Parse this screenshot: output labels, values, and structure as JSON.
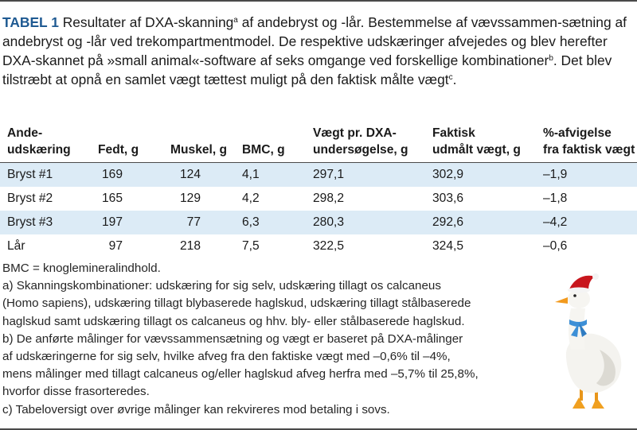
{
  "caption": {
    "label": "TABEL 1",
    "text_1": " Resultater af DXA-skanning",
    "sup_a": "a",
    "text_2": " af andebryst og -lår. Bestemmelse af vævssammen-sætning af andebryst og -lår ved trekompartmentmodel. De respektive udskæringer afvejedes og blev herefter DXA-skannet på »small animal«-software af seks omgange ved forskellige kombinationer",
    "sup_b": "b",
    "text_3": ". Det blev tilstræbt at opnå en samlet vægt tættest muligt på den faktisk målte vægt",
    "sup_c": "c",
    "text_4": "."
  },
  "table": {
    "headers": [
      [
        "Ande-",
        "udskæring"
      ],
      [
        "",
        "Fedt, g"
      ],
      [
        "",
        "Muskel, g"
      ],
      [
        "",
        "BMC, g"
      ],
      [
        "Vægt pr. DXA-",
        "undersøgelse, g"
      ],
      [
        "Faktisk",
        "udmålt vægt, g"
      ],
      [
        "%-afvigelse",
        "fra faktisk vægt"
      ]
    ],
    "rows": [
      [
        "Bryst #1",
        "169",
        "124",
        "4,1",
        "297,1",
        "302,9",
        "–1,9"
      ],
      [
        "Bryst #2",
        "165",
        "129",
        "4,2",
        "298,2",
        "303,6",
        "–1,8"
      ],
      [
        "Bryst #3",
        "197",
        "77",
        "6,3",
        "280,3",
        "292,6",
        "–4,2"
      ],
      [
        "Lår",
        "97",
        "218",
        "7,5",
        "322,5",
        "324,5",
        "–0,6"
      ]
    ]
  },
  "notes": [
    "BMC = knoglemineralindhold.",
    "a) Skanningskombinationer: udskæring for sig selv, udskæring tillagt os calcaneus",
    "(Homo sapiens), udskæring tillagt blybaserede haglskud, udskæring tillagt stålbaserede",
    "haglskud samt udskæring tillagt os calcaneus og hhv. bly- eller stålbaserede haglskud.",
    "b) De anførte målinger for vævssammensætning og vægt er baseret på DXA-målinger",
    "af udskæringerne for sig selv, hvilke afveg fra den faktiske vægt med –0,6% til –4%,",
    "mens målinger med tillagt calcaneus og/eller haglskud afveg herfra med –5,7% til 25,8%,",
    "hvorfor disse frasorteredes.",
    "c) Tabeloversigt over øvrige målinger kan rekvireres mod betaling i sovs."
  ],
  "colors": {
    "label": "#1f5a92",
    "row_shade": "#dcebf6",
    "rule": "#4a4a4a",
    "scarf": "#3d8fd6",
    "hat": "#c8161d"
  },
  "image": {
    "icon": "goose-with-santa-hat-icon"
  }
}
